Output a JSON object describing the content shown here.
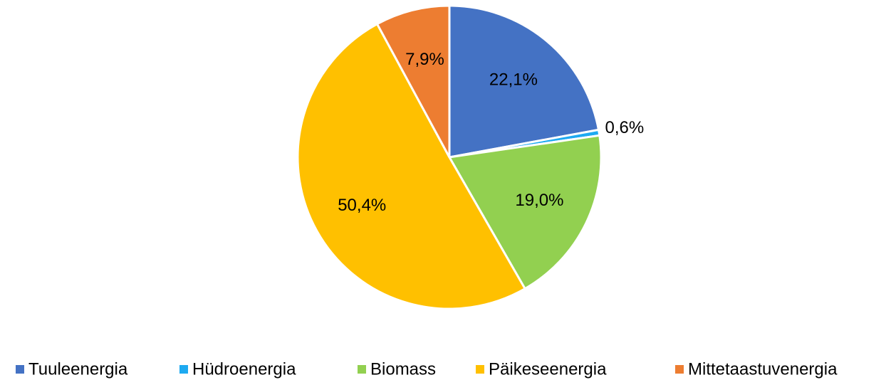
{
  "chart_data": {
    "type": "pie",
    "categories": [
      "Tuuleenergia",
      "Hüdroenergia",
      "Biomass",
      "Päikeseenergia",
      "Mittetaastuvenergia"
    ],
    "values": [
      22.1,
      0.6,
      19.0,
      50.4,
      7.9
    ],
    "value_labels": [
      "22,1%",
      "0,6%",
      "19,0%",
      "50,4%",
      "7,9%"
    ],
    "colors": [
      "#4472c4",
      "#1eaaf1",
      "#92d050",
      "#ffc000",
      "#ed7d31"
    ],
    "legend": "bottom"
  }
}
